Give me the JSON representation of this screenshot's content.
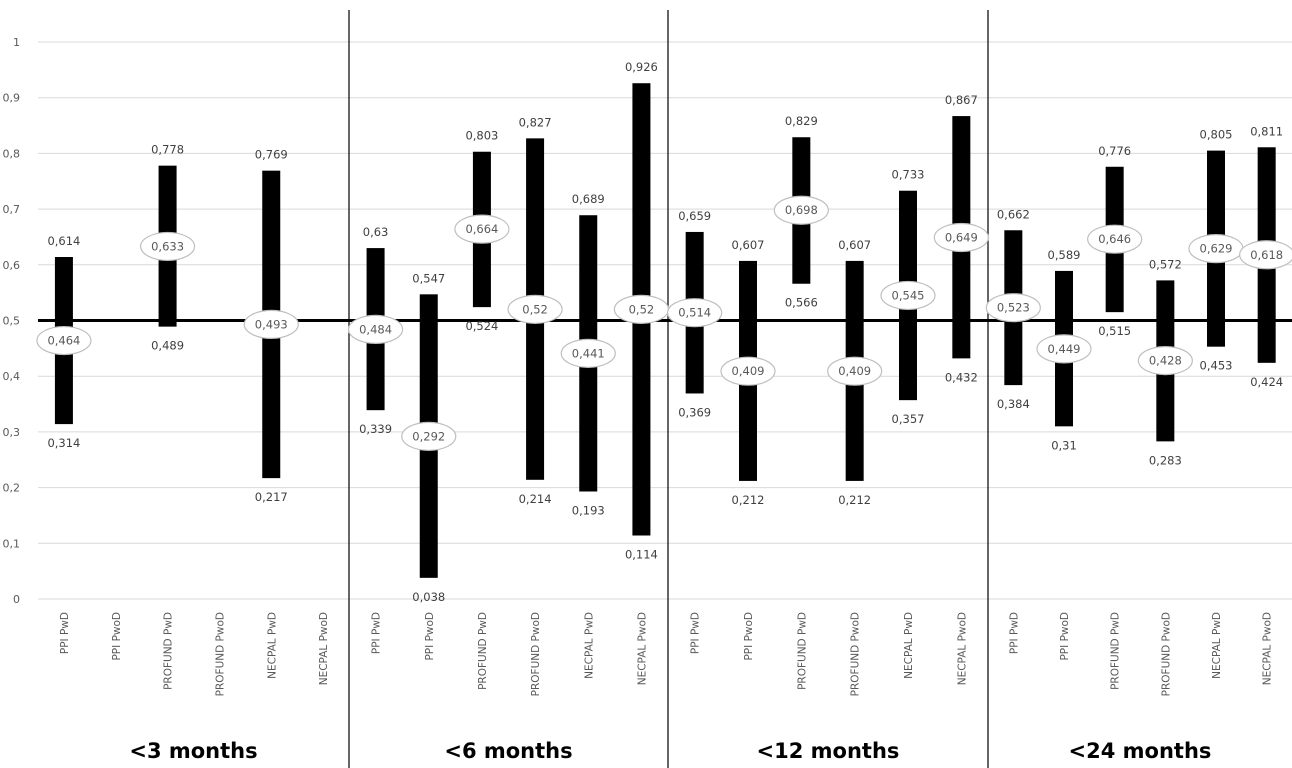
{
  "chart_data": {
    "type": "range-bar",
    "ylim": [
      0,
      1
    ],
    "yticks": [
      "0",
      "0,1",
      "0,2",
      "0,3",
      "0,4",
      "0,5",
      "0,6",
      "0,7",
      "0,8",
      "0,9",
      "1"
    ],
    "reference_line": 0.5,
    "categories": [
      "PPI PwD",
      "PPI PwoD",
      "PROFUND PwD",
      "PROFUND PwoD",
      "NECPAL PwD",
      "NECPAL PwoD"
    ],
    "groups": [
      {
        "label": "<3 months",
        "bars": [
          {
            "category": "PPI PwD",
            "low": 0.314,
            "high": 0.614,
            "point": 0.464,
            "low_label": "0,314",
            "high_label": "0,614",
            "point_label": "0,464"
          },
          null,
          {
            "category": "PROFUND PwD",
            "low": 0.489,
            "high": 0.778,
            "point": 0.633,
            "low_label": "0,489",
            "high_label": "0,778",
            "point_label": "0,633"
          },
          null,
          {
            "category": "NECPAL PwD",
            "low": 0.217,
            "high": 0.769,
            "point": 0.493,
            "low_label": "0,217",
            "high_label": "0,769",
            "point_label": "0,493"
          },
          null
        ]
      },
      {
        "label": "<6 months",
        "bars": [
          {
            "category": "PPI PwD",
            "low": 0.339,
            "high": 0.63,
            "point": 0.484,
            "low_label": "0,339",
            "high_label": "0,63",
            "point_label": "0,484"
          },
          {
            "category": "PPI PwoD",
            "low": 0.038,
            "high": 0.547,
            "point": 0.292,
            "low_label": "0,038",
            "high_label": "0,547",
            "point_label": "0,292"
          },
          {
            "category": "PROFUND PwD",
            "low": 0.524,
            "high": 0.803,
            "point": 0.664,
            "low_label": "0,524",
            "high_label": "0,803",
            "point_label": "0,664"
          },
          {
            "category": "PROFUND PwoD",
            "low": 0.214,
            "high": 0.827,
            "point": 0.52,
            "low_label": "0,214",
            "high_label": "0,827",
            "point_label": "0,52"
          },
          {
            "category": "NECPAL PwD",
            "low": 0.193,
            "high": 0.689,
            "point": 0.441,
            "low_label": "0,193",
            "high_label": "0,689",
            "point_label": "0,441"
          },
          {
            "category": "NECPAL PwoD",
            "low": 0.114,
            "high": 0.926,
            "point": 0.52,
            "low_label": "0,114",
            "high_label": "0,926",
            "point_label": "0,52"
          }
        ]
      },
      {
        "label": "<12 months",
        "bars": [
          {
            "category": "PPI PwD",
            "low": 0.369,
            "high": 0.659,
            "point": 0.514,
            "low_label": "0,369",
            "high_label": "0,659",
            "point_label": "0,514"
          },
          {
            "category": "PPI PwoD",
            "low": 0.212,
            "high": 0.607,
            "point": 0.409,
            "low_label": "0,212",
            "high_label": "0,607",
            "point_label": "0,409"
          },
          {
            "category": "PROFUND PwD",
            "low": 0.566,
            "high": 0.829,
            "point": 0.698,
            "low_label": "0,566",
            "high_label": "0,829",
            "point_label": "0,698"
          },
          {
            "category": "PROFUND PwoD",
            "low": 0.212,
            "high": 0.607,
            "point": 0.409,
            "low_label": "0,212",
            "high_label": "0,607",
            "point_label": "0,409"
          },
          {
            "category": "NECPAL PwD",
            "low": 0.357,
            "high": 0.733,
            "point": 0.545,
            "low_label": "0,357",
            "high_label": "0,733",
            "point_label": "0,545"
          },
          {
            "category": "NECPAL PwoD",
            "low": 0.432,
            "high": 0.867,
            "point": 0.649,
            "low_label": "0,432",
            "high_label": "0,867",
            "point_label": "0,649"
          }
        ]
      },
      {
        "label": "<24 months",
        "bars": [
          {
            "category": "PPI PwD",
            "low": 0.384,
            "high": 0.662,
            "point": 0.523,
            "low_label": "0,384",
            "high_label": "0,662",
            "point_label": "0,523"
          },
          {
            "category": "PPI PwoD",
            "low": 0.31,
            "high": 0.589,
            "point": 0.449,
            "low_label": "0,31",
            "high_label": "0,589",
            "point_label": "0,449"
          },
          {
            "category": "PROFUND PwD",
            "low": 0.515,
            "high": 0.776,
            "point": 0.646,
            "low_label": "0,515",
            "high_label": "0,776",
            "point_label": "0,646"
          },
          {
            "category": "PROFUND PwoD",
            "low": 0.283,
            "high": 0.572,
            "point": 0.428,
            "low_label": "0,283",
            "high_label": "0,572",
            "point_label": "0,428"
          },
          {
            "category": "NECPAL PwD",
            "low": 0.453,
            "high": 0.805,
            "point": 0.629,
            "low_label": "0,453",
            "high_label": "0,805",
            "point_label": "0,629"
          },
          {
            "category": "NECPAL PwoD",
            "low": 0.424,
            "high": 0.811,
            "point": 0.618,
            "low_label": "0,424",
            "high_label": "0,811",
            "point_label": "0,618"
          }
        ]
      }
    ],
    "colors": {
      "bar": "#000000",
      "gridline": "#d9d9d9",
      "reference_line": "#000000",
      "point_marker_fill": "#ffffff",
      "point_marker_stroke": "#bfbfbf"
    },
    "grid": true
  }
}
